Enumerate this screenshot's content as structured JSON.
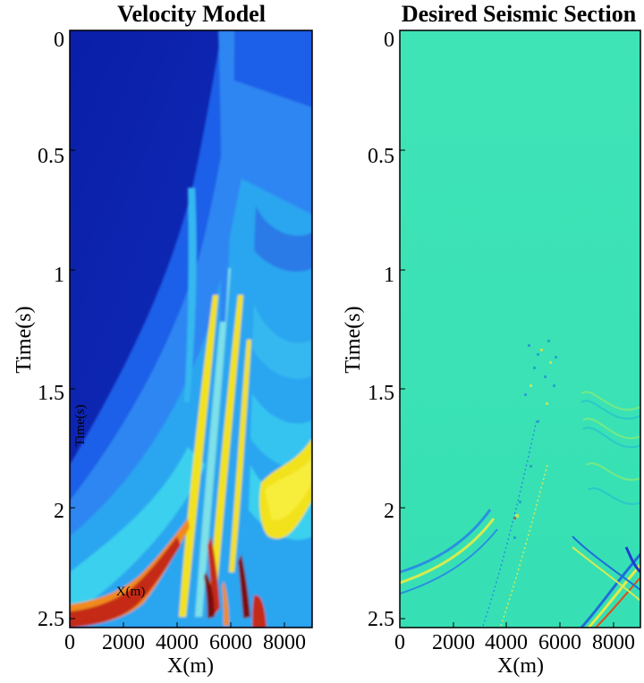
{
  "colors": {
    "deep_blue": "#0a1ea8",
    "blue": "#1f5ee8",
    "mid_blue": "#2e86f2",
    "cyan": "#35c4f0",
    "yellow": "#f2e21b",
    "orange": "#f08a1e",
    "red": "#c42a12",
    "dark_red": "#7a0f0a",
    "seismic_bg": "#39e6b8"
  },
  "chart_data": [
    {
      "type": "heatmap",
      "title": "Velocity Model",
      "xlabel": "X(m)",
      "ylabel": "Time(s)",
      "xlim": [
        0,
        9000
      ],
      "ylim": [
        2.5,
        0
      ],
      "x_ticks": [
        "0",
        "2000",
        "4000",
        "6000",
        "8000"
      ],
      "y_ticks": [
        "0",
        "0.5",
        "1",
        "1.5",
        "2",
        "2.5"
      ],
      "overlay_labels": [
        "Time(s)",
        "X(m)"
      ],
      "colormap": "jet",
      "grid": false
    },
    {
      "type": "heatmap",
      "title": "Desired Seismic Section",
      "xlabel": "X(m)",
      "ylabel": "Time(s)",
      "xlim": [
        0,
        9000
      ],
      "ylim": [
        2.5,
        0
      ],
      "x_ticks": [
        "0",
        "2000",
        "4000",
        "6000",
        "8000"
      ],
      "y_ticks": [
        "0",
        "0.5",
        "1",
        "1.5",
        "2",
        "2.5"
      ],
      "colormap": "jet",
      "grid": false
    }
  ]
}
